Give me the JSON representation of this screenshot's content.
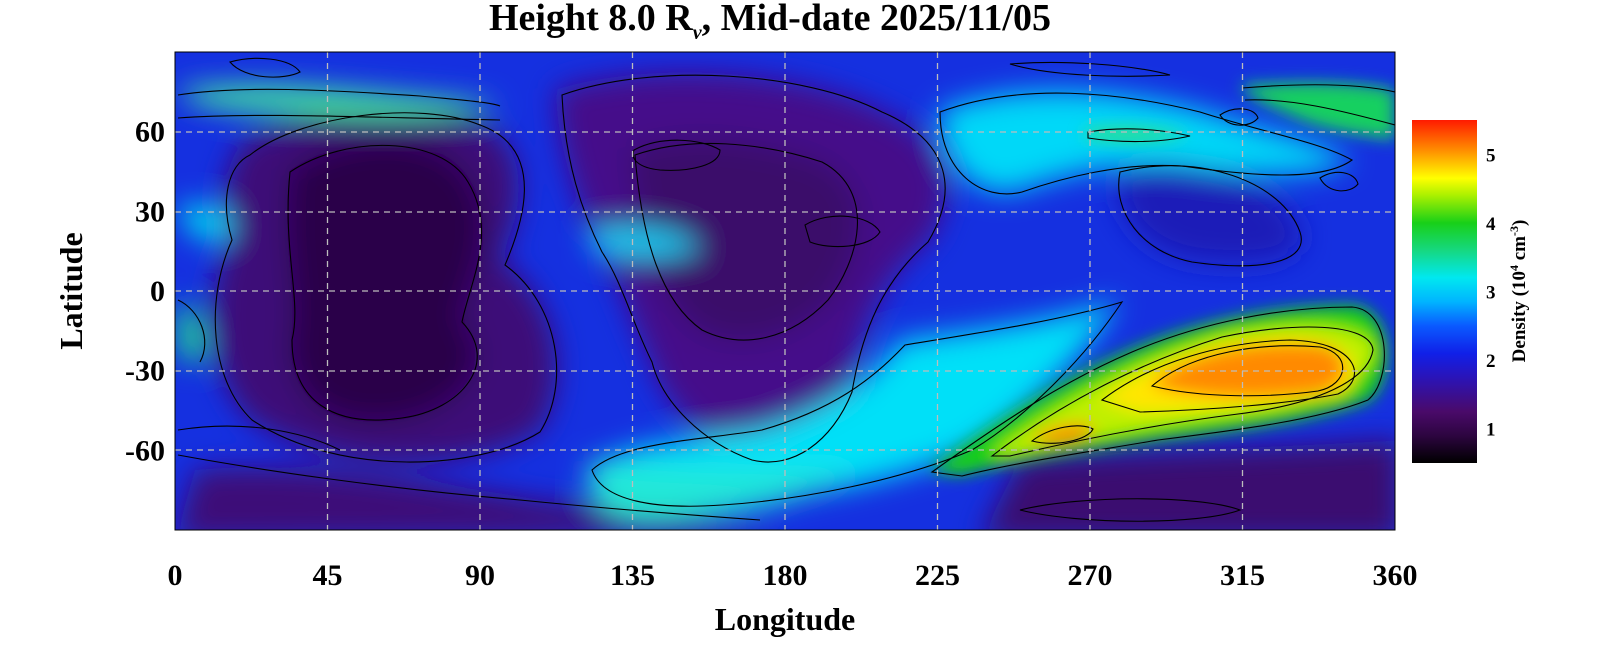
{
  "chart_data": {
    "type": "heatmap",
    "title_main": "Height 8.0 R",
    "title_subscript": "v",
    "title_rest": ", Mid-date 2025/11/05",
    "xlabel": "Longitude",
    "ylabel": "Latitude",
    "xlim": [
      0,
      360
    ],
    "ylim": [
      -90,
      90
    ],
    "xticks": [
      0,
      45,
      90,
      135,
      180,
      225,
      270,
      315,
      360
    ],
    "yticks": [
      60,
      30,
      0,
      -30,
      -60
    ],
    "grid": true,
    "colorbar": {
      "label_prefix": "Density (10",
      "label_exp1": "4",
      "label_mid": " cm",
      "label_exp2": "-3",
      "label_suffix": ")",
      "range": [
        0.5,
        5.5
      ],
      "ticks": [
        1,
        2,
        3,
        4,
        5
      ],
      "colormap": [
        "#000000",
        "#4a0a6a",
        "#1a1ad8",
        "#0a5aff",
        "#00e8ff",
        "#18d018",
        "#ffff00",
        "#ff8800",
        "#ff1a00"
      ]
    },
    "features": [
      {
        "region": "low-density band",
        "lon_range": [
          30,
          120
        ],
        "lat_range": [
          -50,
          60
        ],
        "density": 0.8
      },
      {
        "region": "low-density patch",
        "lon_range": [
          140,
          230
        ],
        "lat_range": [
          -60,
          70
        ],
        "density": 1.1
      },
      {
        "region": "high-density ridge",
        "lon_range": [
          260,
          355
        ],
        "lat_range": [
          -65,
          -20
        ],
        "density": 4.2
      },
      {
        "region": "density peak",
        "lon": 330,
        "lat": -32,
        "density": 5.0
      },
      {
        "region": "secondary peak",
        "lon": 265,
        "lat": -55,
        "density": 5.0
      },
      {
        "region": "north polar streamer",
        "lon_range": [
          0,
          100
        ],
        "lat_range": [
          70,
          80
        ],
        "density": 3.5
      },
      {
        "region": "north-east streamer",
        "lon_range": [
          320,
          360
        ],
        "lat_range": [
          55,
          80
        ],
        "density": 3.5
      },
      {
        "region": "southern cyan belt",
        "lon_range": [
          130,
          260
        ],
        "lat_range": [
          -80,
          -20
        ],
        "density": 2.6
      }
    ]
  }
}
